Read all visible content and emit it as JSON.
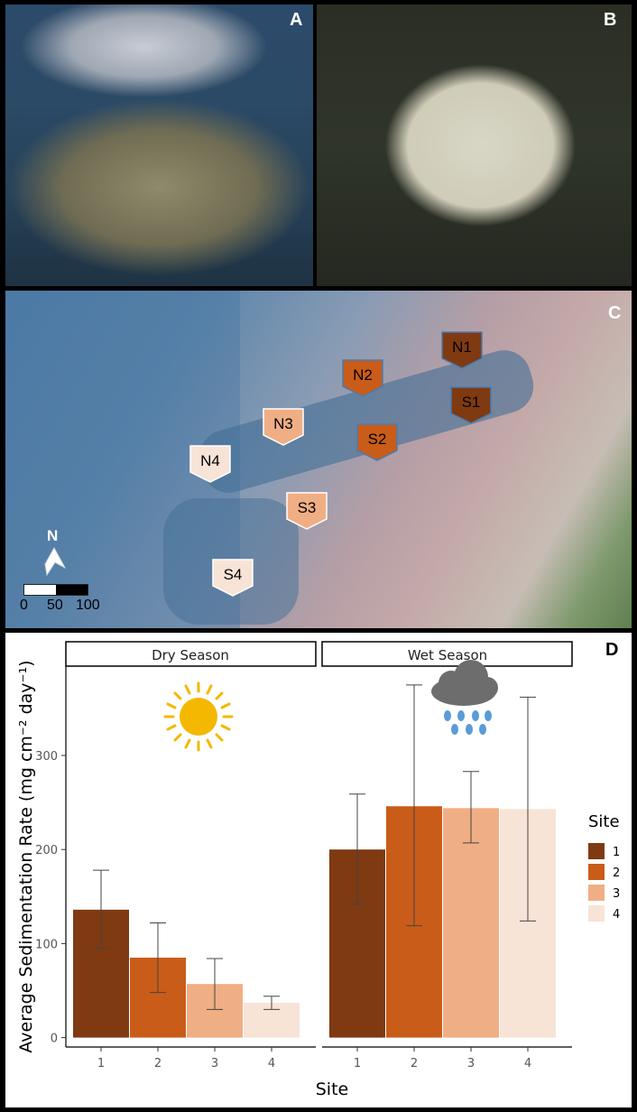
{
  "panels": {
    "a": {
      "letter": "A"
    },
    "b": {
      "letter": "B"
    },
    "c": {
      "letter": "C"
    },
    "d": {
      "letter": "D"
    }
  },
  "map": {
    "north_label": "N",
    "scale": {
      "labels": [
        "0",
        "50",
        "100"
      ]
    },
    "sites": [
      {
        "label": "N1",
        "color": "#7f3a12"
      },
      {
        "label": "N2",
        "color": "#c95c19"
      },
      {
        "label": "N3",
        "color": "#f0ae84"
      },
      {
        "label": "N4",
        "color": "#f8e3d7"
      },
      {
        "label": "S1",
        "color": "#7f3a12"
      },
      {
        "label": "S2",
        "color": "#c95c19"
      },
      {
        "label": "S3",
        "color": "#f0ae84"
      },
      {
        "label": "S4",
        "color": "#f8e3d7"
      }
    ]
  },
  "chart_data": {
    "type": "bar",
    "facets": [
      "Dry Season",
      "Wet Season"
    ],
    "categories": [
      "1",
      "2",
      "3",
      "4"
    ],
    "series": [
      {
        "name": "Dry Season",
        "values": [
          136,
          85,
          57,
          37
        ],
        "error_low": [
          95,
          48,
          30,
          30
        ],
        "error_high": [
          178,
          122,
          84,
          44
        ]
      },
      {
        "name": "Wet Season",
        "values": [
          200,
          246,
          244,
          243
        ],
        "error_low": [
          142,
          119,
          207,
          124
        ],
        "error_high": [
          259,
          375,
          283,
          362
        ]
      }
    ],
    "xlabel": "Site",
    "ylabel": "Average Sedimentation Rate (mg cm⁻² day⁻¹)",
    "ylim": [
      -10,
      395
    ],
    "yticks": [
      0,
      100,
      200,
      300
    ],
    "legend": {
      "title": "Site",
      "entries": [
        "1",
        "2",
        "3",
        "4"
      ],
      "position": "right"
    },
    "colors": [
      "#7f3a12",
      "#c95c19",
      "#f0ae84",
      "#f8e3d7"
    ],
    "icons": [
      "sun-icon",
      "rain-cloud-icon"
    ]
  }
}
